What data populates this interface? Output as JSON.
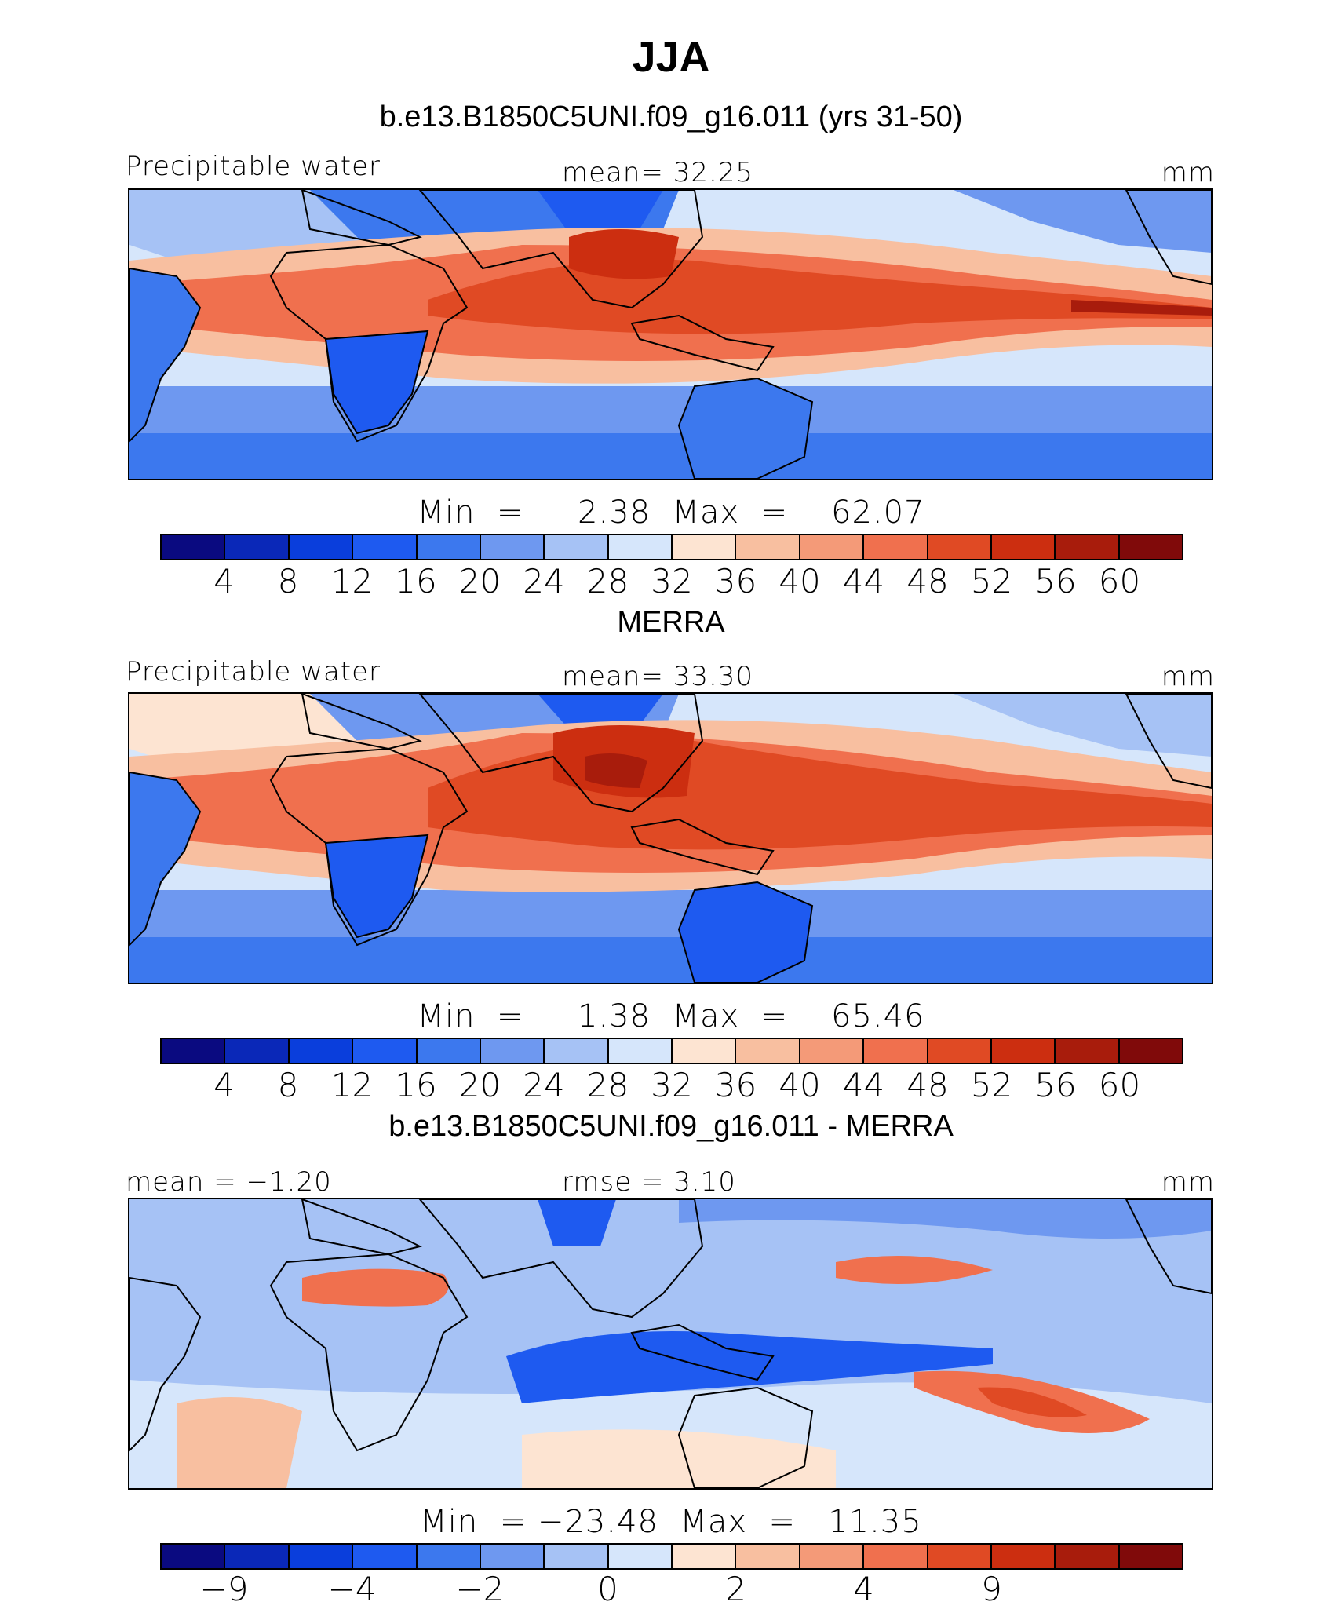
{
  "title": "JJA",
  "palette": [
    "#0a0a80",
    "#0a28b8",
    "#0a3edc",
    "#1e5af0",
    "#3c78ee",
    "#6e98f0",
    "#a6c2f5",
    "#d6e6fb",
    "#fde4d2",
    "#f8bfa0",
    "#f49a78",
    "#f0704e",
    "#e04a24",
    "#cc2e10",
    "#a81c0c",
    "#800a0a"
  ],
  "ocean_colors": {
    "deep_blue": "#1e5af0",
    "mid_blue": "#6e98f0",
    "light_blue": "#d6e6fb",
    "pale": "#fde4d2",
    "orange": "#f0704e",
    "red": "#cc2e10"
  },
  "panels": [
    {
      "title": "b.e13.B1850C5UNI.f09_g16.011 (yrs 31-50)",
      "left_label": "Precipitable water",
      "center_label": "mean=   32.25",
      "right_label": "mm",
      "min_max": "Min  =     2.38  Max  =    62.07",
      "ticks": [
        "4",
        "8",
        "12",
        "16",
        "20",
        "24",
        "28",
        "32",
        "36",
        "40",
        "44",
        "48",
        "52",
        "56",
        "60"
      ]
    },
    {
      "title": "MERRA",
      "left_label": "Precipitable water",
      "center_label": "mean=   33.30",
      "right_label": "mm",
      "min_max": "Min  =     1.38  Max  =    65.46",
      "ticks": [
        "4",
        "8",
        "12",
        "16",
        "20",
        "24",
        "28",
        "32",
        "36",
        "40",
        "44",
        "48",
        "52",
        "56",
        "60"
      ]
    },
    {
      "title": "b.e13.B1850C5UNI.f09_g16.011 - MERRA",
      "left_label": "mean =  −1.20",
      "center_label": "rmse =    3.10",
      "right_label": "mm",
      "min_max": "Min  = −23.48  Max  =   11.35",
      "ticks": [
        "−9",
        "−4",
        "−2",
        "0",
        "2",
        "4",
        "9"
      ]
    }
  ]
}
